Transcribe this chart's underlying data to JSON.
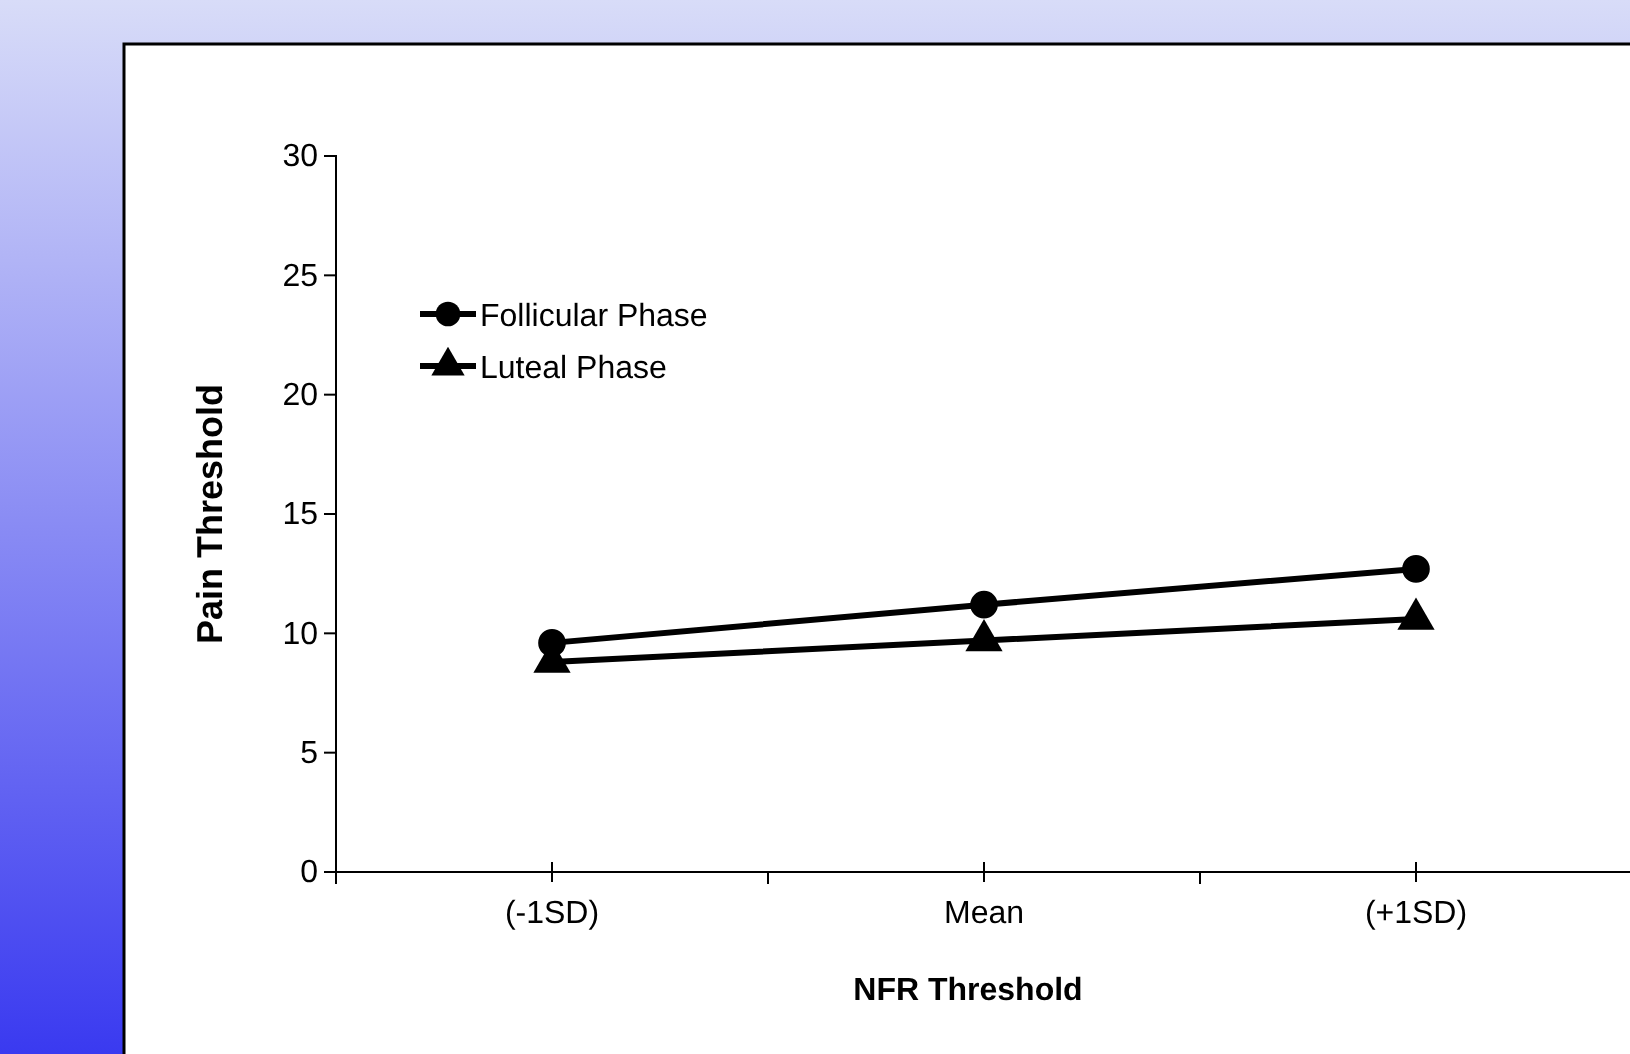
{
  "chart_data": {
    "type": "line",
    "xlabel": "NFR Threshold",
    "ylabel": "Pain Threshold",
    "categories": [
      "(-1SD)",
      "Mean",
      "(+1SD)"
    ],
    "series": [
      {
        "name": "Follicular Phase",
        "color": "#000000",
        "values": [
          9.6,
          11.2,
          12.7
        ],
        "marker": "circle"
      },
      {
        "name": "Luteal Phase",
        "color": "#000000",
        "values": [
          8.8,
          9.7,
          10.6
        ],
        "marker": "triangle"
      }
    ],
    "ylim": [
      0,
      30
    ],
    "yticks": [
      0,
      5,
      10,
      15,
      20,
      25,
      30
    ],
    "legend": "top left",
    "grid": false,
    "line_style": "solid"
  }
}
